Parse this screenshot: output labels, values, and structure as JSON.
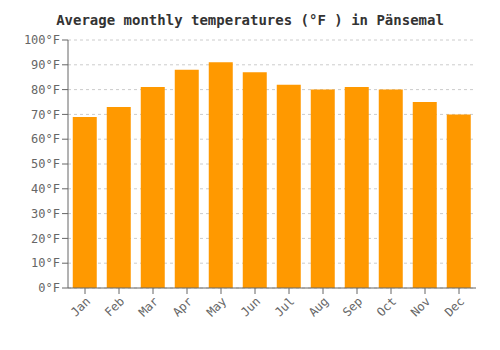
{
  "chart_data": {
    "type": "bar",
    "title": "Average monthly temperatures (°F ) in Pänsemal",
    "categories": [
      "Jan",
      "Feb",
      "Mar",
      "Apr",
      "May",
      "Jun",
      "Jul",
      "Aug",
      "Sep",
      "Oct",
      "Nov",
      "Dec"
    ],
    "values": [
      69,
      73,
      81,
      88,
      91,
      87,
      82,
      80,
      81,
      80,
      75,
      70
    ],
    "color": "#FF9900",
    "ylim": [
      0,
      100
    ],
    "yticks": [
      {
        "value": 0,
        "label": "0°F"
      },
      {
        "value": 10,
        "label": "10°F"
      },
      {
        "value": 20,
        "label": "20°F"
      },
      {
        "value": 30,
        "label": "30°F"
      },
      {
        "value": 40,
        "label": "40°F"
      },
      {
        "value": 50,
        "label": "50°F"
      },
      {
        "value": 60,
        "label": "60°F"
      },
      {
        "value": 70,
        "label": "70°F"
      },
      {
        "value": 80,
        "label": "80°F"
      },
      {
        "value": 90,
        "label": "90°F"
      },
      {
        "value": 100,
        "label": "100°F"
      }
    ],
    "grid": true
  }
}
